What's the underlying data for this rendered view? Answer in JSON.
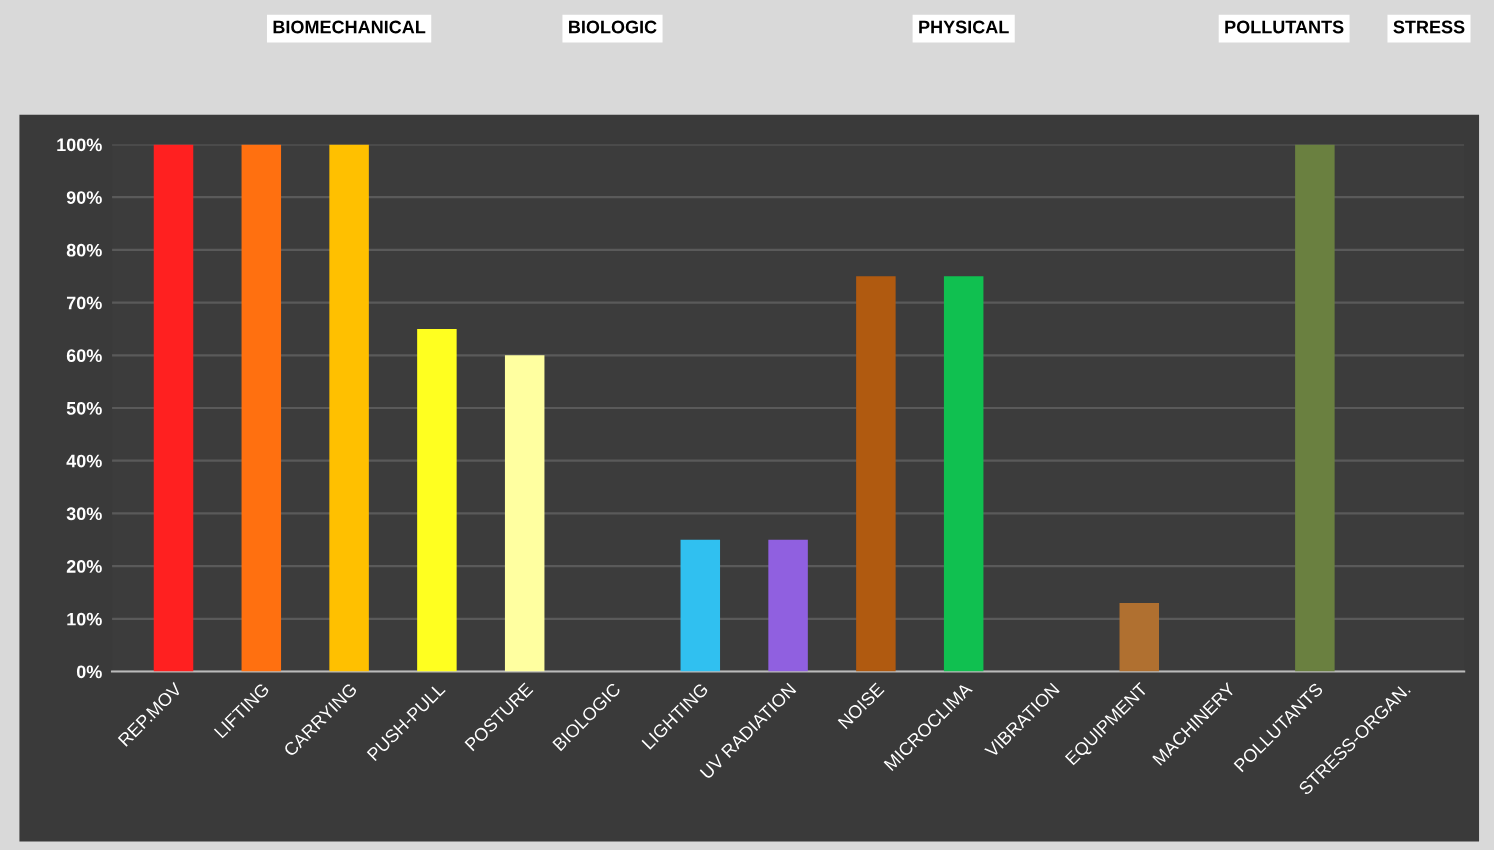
{
  "chart_data": {
    "type": "bar",
    "categories": [
      "REP.MOV",
      "LIFTING",
      "CARRYING",
      "PUSH-PULL",
      "POSTURE",
      "BIOLOGIC",
      "LIGHTING",
      "UV RADIATION",
      "NOISE",
      "MICROCLIMA",
      "VIBRATION",
      "EQUIPMENT",
      "MACHINERY",
      "POLLUTANTS",
      "STRESS-ORGAN."
    ],
    "values": [
      100,
      100,
      100,
      65,
      60,
      0,
      25,
      25,
      75,
      75,
      0,
      13,
      0,
      100,
      0
    ],
    "colors": [
      "#ff2020",
      "#ff7010",
      "#ffc000",
      "#ffff20",
      "#ffffa0",
      "#808080",
      "#30c0f0",
      "#9060e0",
      "#b05a10",
      "#10c050",
      "#808080",
      "#b07030",
      "#6a8040",
      "#6a8040",
      "#808080"
    ],
    "ylim": [
      0,
      100
    ],
    "yticks": [
      {
        "value": 0,
        "label": "0%"
      },
      {
        "value": 10,
        "label": "10%"
      },
      {
        "value": 20,
        "label": "20%"
      },
      {
        "value": 30,
        "label": "30%"
      },
      {
        "value": 40,
        "label": "40%"
      },
      {
        "value": 50,
        "label": "50%"
      },
      {
        "value": 60,
        "label": "60%"
      },
      {
        "value": 70,
        "label": "70%"
      },
      {
        "value": 80,
        "label": "80%"
      },
      {
        "value": 90,
        "label": "90%"
      },
      {
        "value": 100,
        "label": "100%"
      }
    ],
    "grid": "y",
    "annotations": [
      "BIOMECHANICAL",
      "BIOLOGIC",
      "PHYSICAL",
      "POLLUTANTS",
      "STRESS"
    ]
  }
}
